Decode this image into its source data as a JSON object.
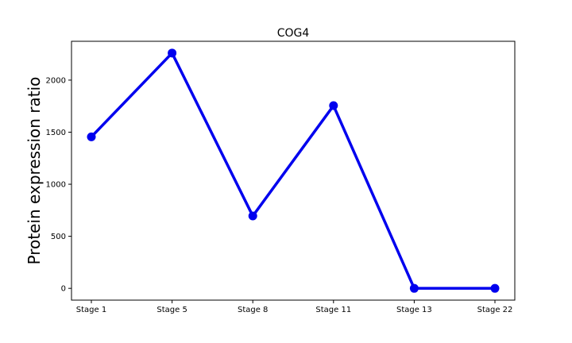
{
  "chart_data": {
    "type": "line",
    "title": "COG4",
    "xlabel": "",
    "ylabel": "Protein expression ratio",
    "categories": [
      "Stage 1",
      "Stage 5",
      "Stage 8",
      "Stage 11",
      "Stage 13",
      "Stage 22"
    ],
    "series": [
      {
        "values": [
          1455,
          2260,
          695,
          1755,
          0,
          0
        ],
        "color": "#0000ee"
      }
    ],
    "yticks": [
      0,
      500,
      1000,
      1500,
      2000
    ],
    "ylim": [
      -113,
      2373
    ],
    "grid": false,
    "legend": "none"
  }
}
